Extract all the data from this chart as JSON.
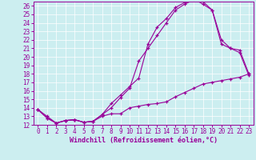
{
  "xlabel": "Windchill (Refroidissement éolien,°C)",
  "xlim": [
    -0.5,
    23.5
  ],
  "ylim": [
    12,
    26.5
  ],
  "xticks": [
    0,
    1,
    2,
    3,
    4,
    5,
    6,
    7,
    8,
    9,
    10,
    11,
    12,
    13,
    14,
    15,
    16,
    17,
    18,
    19,
    20,
    21,
    22,
    23
  ],
  "yticks": [
    12,
    13,
    14,
    15,
    16,
    17,
    18,
    19,
    20,
    21,
    22,
    23,
    24,
    25,
    26
  ],
  "bg_color": "#cceef0",
  "line_color": "#990099",
  "line1_x": [
    0,
    1,
    2,
    3,
    4,
    5,
    6,
    7,
    8,
    9,
    10,
    11,
    12,
    13,
    14,
    15,
    16,
    17,
    18,
    19,
    20,
    21,
    22,
    23
  ],
  "line1_y": [
    13.8,
    13.0,
    12.2,
    12.5,
    12.6,
    12.3,
    12.4,
    13.0,
    13.3,
    13.3,
    14.0,
    14.2,
    14.4,
    14.5,
    14.7,
    15.3,
    15.8,
    16.3,
    16.8,
    17.0,
    17.2,
    17.4,
    17.6,
    18.0
  ],
  "line2_x": [
    0,
    1,
    2,
    3,
    4,
    5,
    6,
    7,
    8,
    9,
    10,
    11,
    12,
    13,
    14,
    15,
    16,
    17,
    18,
    19,
    20,
    21,
    22,
    23
  ],
  "line2_y": [
    13.8,
    12.8,
    12.2,
    12.5,
    12.6,
    12.3,
    12.4,
    13.2,
    14.0,
    15.2,
    16.3,
    19.5,
    21.0,
    22.5,
    24.0,
    25.5,
    26.2,
    26.7,
    26.5,
    25.5,
    22.0,
    21.0,
    20.8,
    18.0
  ],
  "line3_x": [
    0,
    1,
    2,
    3,
    4,
    5,
    6,
    7,
    8,
    9,
    10,
    11,
    12,
    13,
    14,
    15,
    16,
    17,
    18,
    19,
    20,
    21,
    22,
    23
  ],
  "line3_y": [
    13.8,
    12.8,
    12.2,
    12.5,
    12.6,
    12.3,
    12.4,
    13.2,
    14.5,
    15.5,
    16.5,
    17.5,
    21.5,
    23.5,
    24.5,
    25.8,
    26.4,
    26.8,
    26.2,
    25.5,
    21.5,
    21.0,
    20.5,
    17.8
  ],
  "font_size": 5.5,
  "xlabel_fontsize": 6.0,
  "tick_fontsize": 5.5
}
